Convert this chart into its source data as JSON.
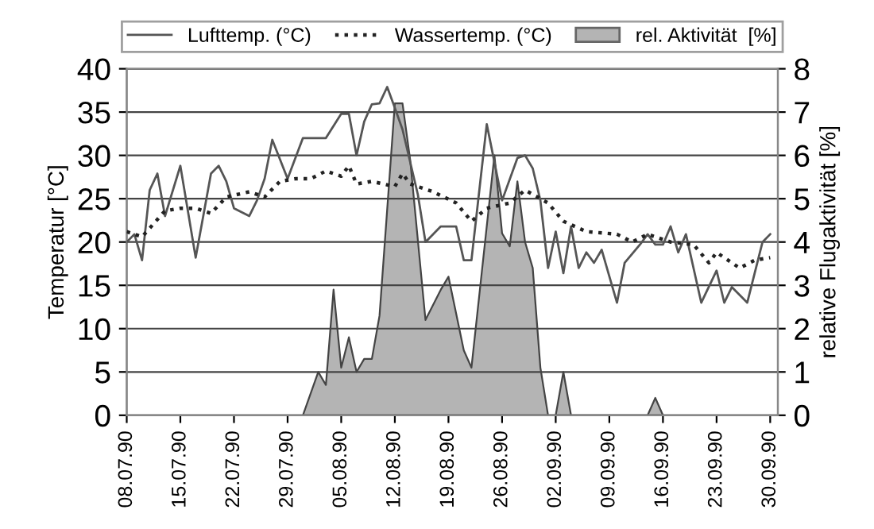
{
  "chart_data": {
    "type": "line",
    "ylabel": "Temperatur [°C]",
    "y2label": "relative Flugaktivität [%]",
    "xlim": [
      "1990-07-08",
      "1990-10-01"
    ],
    "ylim": [
      0,
      40
    ],
    "yticks": [
      0,
      5,
      10,
      15,
      20,
      25,
      30,
      35,
      40
    ],
    "y2lim": [
      0,
      8
    ],
    "y2ticks": [
      0,
      1,
      2,
      3,
      4,
      5,
      6,
      7,
      8
    ],
    "xticks": [
      {
        "value": "1990-07-08",
        "label": "08.07.90"
      },
      {
        "value": "1990-07-15",
        "label": "15.07.90"
      },
      {
        "value": "1990-07-22",
        "label": "22.07.90"
      },
      {
        "value": "1990-07-29",
        "label": "29.07.90"
      },
      {
        "value": "1990-08-05",
        "label": "05.08.90"
      },
      {
        "value": "1990-08-12",
        "label": "12.08.90"
      },
      {
        "value": "1990-08-19",
        "label": "19.08.90"
      },
      {
        "value": "1990-08-26",
        "label": "26.08.90"
      },
      {
        "value": "1990-09-02",
        "label": "02.09.90"
      },
      {
        "value": "1990-09-09",
        "label": "09.09.90"
      },
      {
        "value": "1990-09-16",
        "label": "16.09.90"
      },
      {
        "value": "1990-09-23",
        "label": "23.09.90"
      },
      {
        "value": "1990-09-30",
        "label": "30.09.90"
      }
    ],
    "grid": "y",
    "legend": "top",
    "series": [
      {
        "name": "rel. Aktivität  [%]",
        "type": "area",
        "axis": "y2",
        "color": "#b4b4b4",
        "x": [
          "1990-07-31",
          "1990-08-02",
          "1990-08-03",
          "1990-08-04",
          "1990-08-05",
          "1990-08-06",
          "1990-08-07",
          "1990-08-08",
          "1990-08-09",
          "1990-08-10",
          "1990-08-12",
          "1990-08-13",
          "1990-08-14",
          "1990-08-16",
          "1990-08-18",
          "1990-08-19",
          "1990-08-21",
          "1990-08-22",
          "1990-08-25",
          "1990-08-26",
          "1990-08-27",
          "1990-08-28",
          "1990-08-29",
          "1990-08-30",
          "1990-08-31",
          "1990-09-01",
          "1990-09-02",
          "1990-09-03",
          "1990-09-04",
          "1990-09-14",
          "1990-09-15",
          "1990-09-16"
        ],
        "values": [
          0,
          1.0,
          0.7,
          2.9,
          1.1,
          1.8,
          1.0,
          1.3,
          1.3,
          2.3,
          7.2,
          7.2,
          5.9,
          2.2,
          2.9,
          3.2,
          1.5,
          1.1,
          6.0,
          4.2,
          3.9,
          5.4,
          4.0,
          3.4,
          1.1,
          0,
          0,
          1.0,
          0,
          0,
          0.4,
          0
        ]
      },
      {
        "name": "Lufttemp. (°C)",
        "line_style": "solid",
        "color": "#555555",
        "x": [
          "1990-07-08",
          "1990-07-09",
          "1990-07-10",
          "1990-07-11",
          "1990-07-12",
          "1990-07-13",
          "1990-07-15",
          "1990-07-17",
          "1990-07-19",
          "1990-07-20",
          "1990-07-21",
          "1990-07-22",
          "1990-07-24",
          "1990-07-25",
          "1990-07-26",
          "1990-07-27",
          "1990-07-29",
          "1990-07-31",
          "1990-08-03",
          "1990-08-05",
          "1990-08-06",
          "1990-08-07",
          "1990-08-08",
          "1990-08-09",
          "1990-08-10",
          "1990-08-11",
          "1990-08-12",
          "1990-08-13",
          "1990-08-15",
          "1990-08-16",
          "1990-08-18",
          "1990-08-20",
          "1990-08-21",
          "1990-08-22",
          "1990-08-24",
          "1990-08-26",
          "1990-08-28",
          "1990-08-29",
          "1990-08-30",
          "1990-08-31",
          "1990-09-01",
          "1990-09-02",
          "1990-09-03",
          "1990-09-04",
          "1990-09-05",
          "1990-09-06",
          "1990-09-07",
          "1990-09-08",
          "1990-09-10",
          "1990-09-11",
          "1990-09-13",
          "1990-09-14",
          "1990-09-15",
          "1990-09-16",
          "1990-09-17",
          "1990-09-18",
          "1990-09-19",
          "1990-09-21",
          "1990-09-23",
          "1990-09-24",
          "1990-09-25",
          "1990-09-27",
          "1990-09-29",
          "1990-09-30"
        ],
        "values": [
          20,
          20.9,
          17.9,
          26,
          27.9,
          23,
          28.8,
          18.2,
          27.9,
          28.8,
          27,
          23.9,
          23,
          24.8,
          27.3,
          31.8,
          27.3,
          32,
          32,
          34.8,
          34.8,
          30,
          33.9,
          35.9,
          36,
          37.9,
          35.5,
          33,
          25.5,
          20,
          21.8,
          21.8,
          17.9,
          17.9,
          33.6,
          24.8,
          29.7,
          30,
          28.5,
          24.8,
          17,
          21.2,
          16.4,
          21.8,
          17,
          18.8,
          17.6,
          19.1,
          13,
          17.6,
          19.7,
          20.9,
          19.7,
          19.7,
          21.8,
          18.8,
          20.9,
          13,
          16.7,
          13,
          14.8,
          13,
          20,
          20.9
        ]
      },
      {
        "name": "Wassertemp. (°C)",
        "line_style": "dotted",
        "color": "#222222",
        "x": [
          "1990-07-08",
          "1990-07-10",
          "1990-07-13",
          "1990-07-15",
          "1990-07-17",
          "1990-07-19",
          "1990-07-21",
          "1990-07-24",
          "1990-07-26",
          "1990-07-28",
          "1990-07-30",
          "1990-08-01",
          "1990-08-03",
          "1990-08-05",
          "1990-08-06",
          "1990-08-07",
          "1990-08-09",
          "1990-08-12",
          "1990-08-13",
          "1990-08-14",
          "1990-08-17",
          "1990-08-20",
          "1990-08-22",
          "1990-08-24",
          "1990-08-27",
          "1990-08-29",
          "1990-09-01",
          "1990-09-03",
          "1990-09-06",
          "1990-09-10",
          "1990-09-12",
          "1990-09-14",
          "1990-09-17",
          "1990-09-20",
          "1990-09-22",
          "1990-09-23",
          "1990-09-26",
          "1990-09-28",
          "1990-09-30"
        ],
        "values": [
          21.2,
          20.6,
          23.6,
          23.9,
          23.9,
          23.3,
          25.2,
          25.8,
          25.2,
          27,
          27.3,
          27.3,
          28.2,
          27.6,
          28.8,
          26.7,
          27,
          26.4,
          27.9,
          26.7,
          25.8,
          24.5,
          22.4,
          23.9,
          24.5,
          26,
          24.5,
          22.4,
          21.2,
          20.9,
          20,
          20.9,
          20,
          19.7,
          17.6,
          18.8,
          17,
          17.9,
          18.2
        ]
      }
    ]
  }
}
